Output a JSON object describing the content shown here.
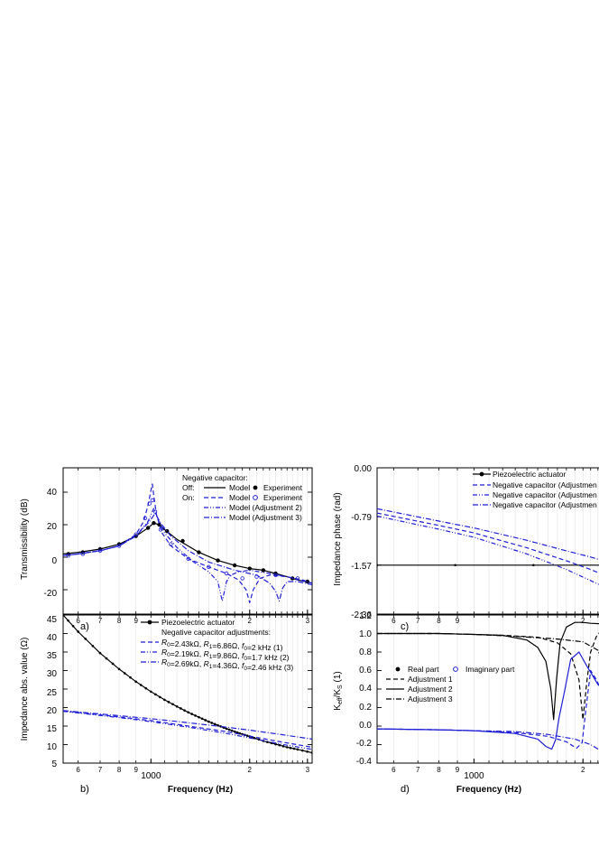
{
  "colors": {
    "black": "#000000",
    "blue": "#1f1fd6",
    "grid": "#e2e2e2"
  },
  "panels": {
    "a": {
      "label": "a)",
      "ylabel": "Transmissibility (dB)",
      "yticks": [
        "40",
        "20",
        "0",
        "-20"
      ],
      "xticks": [
        "6",
        "7",
        "8",
        "9",
        "2",
        "3"
      ],
      "legend": {
        "heading": "Negative capacitor:",
        "off": "Off:",
        "on": "On:",
        "model": "Model",
        "experiment": "Experiment",
        "adj2": "Model (Adjustment 2)",
        "adj3": "Model (Adjustment 3)"
      }
    },
    "b": {
      "label": "b)",
      "ylabel": "Impedance abs. value (Ω)",
      "yticks": [
        "45",
        "40",
        "35",
        "30",
        "25",
        "20",
        "15",
        "10",
        "5"
      ],
      "xticks": [
        "6",
        "7",
        "8",
        "9",
        "1000",
        "2",
        "3"
      ],
      "xlabel": "Frequency (Hz)",
      "legend": {
        "piezo": "Piezoelectric actuator",
        "heading": "Negative capacitor adjustments:",
        "adj1": "R0=2.43kΩ, R1=6.86Ω, f0=2 kHz (1)",
        "adj2": "R0=2.19kΩ, R1=9.86Ω, f0=1.7 kHz (2)",
        "adj3": "R0=2.69kΩ, R1=4.36Ω, f0=2.46 kHz  (3)"
      }
    },
    "c": {
      "label": "c)",
      "ylabel": "Impedance phase (rad)",
      "yticks": [
        "0.00",
        "-0.79",
        "-1.57",
        "-2.36"
      ],
      "xticks": [
        "6",
        "7",
        "8",
        "9",
        "2"
      ],
      "legend": {
        "piezo": "Piezoelectric actuator",
        "adj1": "Negative capacitor (Adjustmen",
        "adj2": "Negative capacitor (Adjustmen",
        "adj3": "Negative capacitor (Adjustmen"
      }
    },
    "d": {
      "label": "d)",
      "ylabel": "Keff/KS (1)",
      "yticks": [
        "1.2",
        "1.0",
        "0.8",
        "0.6",
        "0.4",
        "0.2",
        "0.0",
        "-0.2",
        "-0.4"
      ],
      "xticks": [
        "6",
        "7",
        "8",
        "9",
        "1000",
        "2"
      ],
      "xlabel": "Frequency (Hz)",
      "legend": {
        "real": "Real part",
        "imag": "Imaginary part",
        "adj1": "Adjustment 1",
        "adj2": "Adjustment 2",
        "adj3": "Adjustment 3"
      }
    }
  },
  "chart_data": [
    {
      "panel": "a",
      "type": "line",
      "x_scale": "log",
      "xlim": [
        540,
        3100
      ],
      "ylim": [
        -35,
        55
      ],
      "series": [
        {
          "name": "Model",
          "style": "solid",
          "color": "black",
          "x": [
            540,
            600,
            700,
            800,
            900,
            980,
            1020,
            1060,
            1100,
            1200,
            1400,
            1600,
            1800,
            2000,
            2200,
            2400,
            2600,
            2800,
            3100
          ],
          "y": [
            2,
            3,
            5,
            8,
            13,
            18,
            21,
            20,
            17,
            11,
            3,
            -2,
            -5,
            -7,
            -8,
            -10,
            -12,
            -14,
            -16
          ]
        },
        {
          "name": "Experiment",
          "style": "marker-filled",
          "color": "black",
          "x": [
            560,
            620,
            700,
            800,
            900,
            980,
            1020,
            1060,
            1120,
            1250,
            1400,
            1600,
            1800,
            2000,
            2200,
            2400,
            2700,
            3000
          ],
          "y": [
            2,
            3,
            5,
            8,
            13,
            18,
            21,
            20,
            16,
            10,
            3,
            -2,
            -5,
            -7,
            -8,
            -10,
            -13,
            -15
          ]
        },
        {
          "name": "Model",
          "style": "dash",
          "color": "blue",
          "x": [
            540,
            600,
            700,
            800,
            900,
            950,
            980,
            1000,
            1010,
            1020,
            1040,
            1080,
            1150,
            1300,
            1500,
            1700,
            1850,
            1950,
            2000,
            2050,
            2150,
            2300,
            2600,
            2900,
            3100
          ],
          "y": [
            1,
            2,
            4,
            7,
            14,
            22,
            32,
            41,
            45,
            38,
            26,
            15,
            7,
            -1,
            -6,
            -10,
            -14,
            -20,
            -28,
            -20,
            -13,
            -11,
            -12,
            -14,
            -16
          ]
        },
        {
          "name": "Experiment",
          "style": "marker-open",
          "color": "blue",
          "x": [
            560,
            620,
            700,
            800,
            900,
            960,
            990,
            1010,
            1030,
            1070,
            1150,
            1300,
            1500,
            1700,
            1900,
            2100,
            2400,
            2800
          ],
          "y": [
            1,
            2,
            4,
            7,
            14,
            24,
            33,
            35,
            28,
            17,
            8,
            -1,
            -6,
            -10,
            -13,
            -12,
            -11,
            -13
          ]
        },
        {
          "name": "Model (Adjustment 2)",
          "style": "dashdotdot",
          "color": "blue",
          "x": [
            540,
            600,
            700,
            800,
            900,
            980,
            1020,
            1050,
            1100,
            1200,
            1350,
            1500,
            1600,
            1650,
            1700,
            1750,
            1850,
            2000,
            2300,
            2600,
            3100
          ],
          "y": [
            1,
            2,
            4,
            7,
            13,
            22,
            30,
            24,
            15,
            6,
            -3,
            -9,
            -15,
            -27,
            -15,
            -11,
            -9,
            -8,
            -10,
            -12,
            -16
          ]
        },
        {
          "name": "Model (Adjustment 3)",
          "style": "dashdot",
          "color": "blue",
          "x": [
            540,
            600,
            700,
            800,
            900,
            990,
            1030,
            1070,
            1150,
            1300,
            1500,
            1800,
            2100,
            2300,
            2400,
            2460,
            2520,
            2600,
            2800,
            3100
          ],
          "y": [
            1,
            2,
            4,
            7,
            13,
            22,
            27,
            21,
            13,
            4,
            -3,
            -8,
            -11,
            -16,
            -21,
            -27,
            -19,
            -15,
            -15,
            -17
          ]
        }
      ]
    },
    {
      "panel": "b",
      "type": "line",
      "x_scale": "log",
      "xlim": [
        540,
        3100
      ],
      "ylim": [
        5,
        45
      ],
      "series": [
        {
          "name": "Piezoelectric actuator",
          "style": "solid-markers",
          "color": "black",
          "x": [
            540,
            600,
            700,
            800,
            900,
            1000,
            1100,
            1200,
            1300,
            1400,
            1500,
            1600,
            1700,
            1800,
            1900,
            2000,
            2200,
            2400,
            2600,
            2800,
            3100
          ],
          "y": [
            45.0,
            40.5,
            34.7,
            30.4,
            27.0,
            24.3,
            22.1,
            20.3,
            18.7,
            17.4,
            16.2,
            15.2,
            14.3,
            13.5,
            12.8,
            12.2,
            11.0,
            10.1,
            9.3,
            8.7,
            7.8
          ]
        },
        {
          "name": "(1)",
          "style": "dash",
          "color": "blue",
          "x": [
            540,
            800,
            1000,
            1300,
            1700,
            2000,
            2500,
            3100
          ],
          "y": [
            19.1,
            17.5,
            16.5,
            15.0,
            13.5,
            12.3,
            10.7,
            9.3
          ]
        },
        {
          "name": "(2)",
          "style": "dashdotdot",
          "color": "blue",
          "x": [
            540,
            800,
            1000,
            1300,
            1700,
            2000,
            2500,
            3100
          ],
          "y": [
            19.0,
            17.3,
            16.2,
            14.7,
            13.0,
            11.8,
            10.1,
            8.7
          ]
        },
        {
          "name": "(3)",
          "style": "dashdot",
          "color": "blue",
          "x": [
            540,
            800,
            1000,
            1300,
            1700,
            2000,
            2500,
            3100
          ],
          "y": [
            19.2,
            17.8,
            17.0,
            15.9,
            14.7,
            13.9,
            12.7,
            11.5
          ]
        }
      ]
    },
    {
      "panel": "c",
      "type": "line",
      "x_scale": "log",
      "xlim": [
        540,
        2400
      ],
      "ylim": [
        -2.36,
        0
      ],
      "series": [
        {
          "name": "Piezoelectric actuator",
          "style": "solid-markers",
          "color": "black",
          "x": [
            540,
            2400
          ],
          "y": [
            -1.57,
            -1.57
          ]
        },
        {
          "name": "Adjustment 1",
          "style": "dash",
          "color": "blue",
          "x": [
            540,
            800,
            1000,
            1400,
            1800,
            2100,
            2400
          ],
          "y": [
            -0.73,
            -0.93,
            -1.05,
            -1.29,
            -1.5,
            -1.64,
            -1.78
          ]
        },
        {
          "name": "Adjustment 2",
          "style": "dashdotdot",
          "color": "blue",
          "x": [
            540,
            800,
            1000,
            1400,
            1800,
            2100,
            2400
          ],
          "y": [
            -0.78,
            -0.99,
            -1.12,
            -1.39,
            -1.64,
            -1.82,
            -1.98
          ]
        },
        {
          "name": "Adjustment 3",
          "style": "dashdot",
          "color": "blue",
          "x": [
            540,
            800,
            1000,
            1400,
            1800,
            2100,
            2400
          ],
          "y": [
            -0.66,
            -0.86,
            -0.97,
            -1.17,
            -1.34,
            -1.44,
            -1.54
          ]
        }
      ]
    },
    {
      "panel": "d",
      "type": "line",
      "x_scale": "log",
      "xlim": [
        540,
        2400
      ],
      "ylim": [
        -0.4,
        1.2
      ],
      "series": [
        {
          "name": "Adjustment 2 (real)",
          "style": "solid",
          "color": "black",
          "x": [
            540,
            800,
            1000,
            1200,
            1400,
            1500,
            1580,
            1630,
            1660,
            1690,
            1730,
            1800,
            1900,
            2000,
            2100,
            2400
          ],
          "y": [
            1.0,
            1.0,
            0.99,
            0.98,
            0.93,
            0.85,
            0.7,
            0.4,
            0.07,
            0.5,
            0.9,
            1.07,
            1.12,
            1.12,
            1.11,
            1.1
          ]
        },
        {
          "name": "Adjustment 1 (real)",
          "style": "dash",
          "color": "black",
          "x": [
            540,
            800,
            1000,
            1200,
            1500,
            1700,
            1850,
            1950,
            2000,
            2050,
            2100,
            2180,
            2300,
            2400
          ],
          "y": [
            1.0,
            1.0,
            0.99,
            0.98,
            0.96,
            0.9,
            0.78,
            0.5,
            0.07,
            0.48,
            0.8,
            0.97,
            1.08,
            1.1
          ]
        },
        {
          "name": "Adjustment 3 (real)",
          "style": "dashdot",
          "color": "black",
          "x": [
            540,
            800,
            1000,
            1300,
            1700,
            2000,
            2200,
            2300,
            2350,
            2400
          ],
          "y": [
            1.0,
            1.0,
            0.99,
            0.97,
            0.94,
            0.91,
            0.82,
            0.55,
            0.25,
            0.1
          ]
        },
        {
          "name": "Adjustment 2 (imag)",
          "style": "solid",
          "color": "blue",
          "x": [
            540,
            800,
            1000,
            1300,
            1500,
            1580,
            1640,
            1680,
            1720,
            1780,
            1850,
            1950,
            2050,
            2200,
            2400
          ],
          "y": [
            -0.03,
            -0.04,
            -0.05,
            -0.08,
            -0.14,
            -0.22,
            -0.25,
            -0.15,
            0.1,
            0.38,
            0.72,
            0.8,
            0.65,
            0.45,
            0.32
          ]
        },
        {
          "name": "Adjustment 1 (imag)",
          "style": "dash",
          "color": "blue",
          "x": [
            540,
            800,
            1000,
            1300,
            1600,
            1800,
            1920,
            1990,
            2040,
            2100,
            2180,
            2300,
            2400
          ],
          "y": [
            -0.03,
            -0.04,
            -0.05,
            -0.07,
            -0.11,
            -0.17,
            -0.24,
            -0.18,
            0.2,
            0.6,
            0.5,
            0.3,
            0.2
          ]
        },
        {
          "name": "Adjustment 3 (imag)",
          "style": "dashdot",
          "color": "blue",
          "x": [
            540,
            800,
            1000,
            1300,
            1600,
            1900,
            2100,
            2250,
            2320,
            2360,
            2400
          ],
          "y": [
            -0.03,
            -0.04,
            -0.05,
            -0.06,
            -0.09,
            -0.14,
            -0.2,
            -0.27,
            -0.22,
            0.0,
            0.25
          ]
        }
      ]
    }
  ]
}
